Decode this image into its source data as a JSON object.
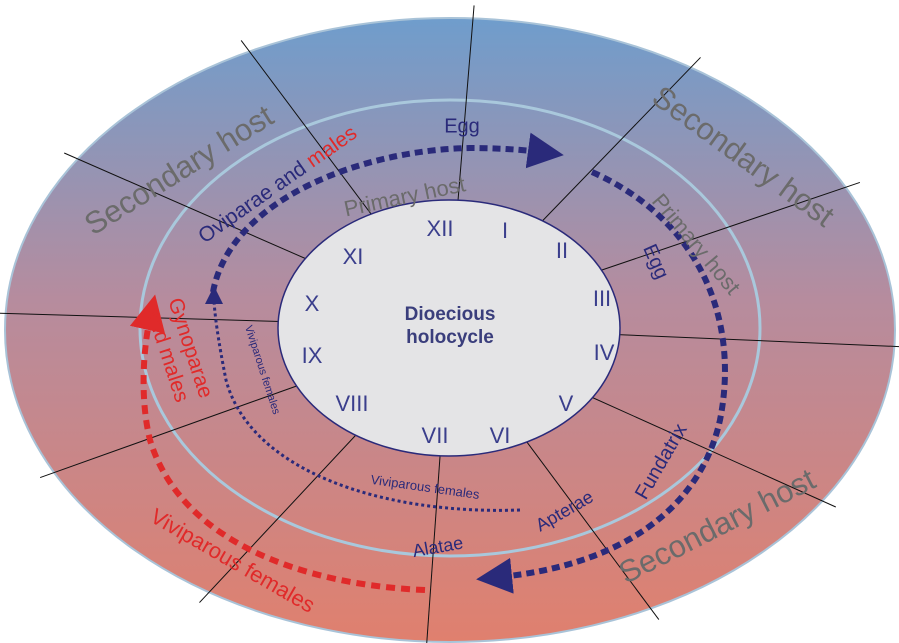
{
  "center": {
    "lines": [
      "Dioecious",
      "holocycle"
    ]
  },
  "months": [
    "XII",
    "I",
    "II",
    "III",
    "IV",
    "V",
    "VI",
    "VII",
    "VIII",
    "IX",
    "X",
    "XI"
  ],
  "labels": [
    {
      "text": "Secondary host"
    },
    {
      "text": "Secondary host"
    },
    {
      "text": "Secondary host"
    },
    {
      "text": "Primary host"
    },
    {
      "text": "Primary host"
    },
    {
      "text": "Egg"
    },
    {
      "text": "Egg"
    },
    {
      "text": "Viviparous females"
    },
    {
      "text": "Viviparous females"
    },
    {
      "text": "Viviparous females"
    },
    {
      "text": "Fundatrix"
    },
    {
      "text": "Apterae"
    },
    {
      "text": "Alatae"
    }
  ],
  "oviparae": {
    "part1": "Oviparae and ",
    "part2": "males"
  },
  "gynoparae": {
    "lines": [
      "Gynoparae",
      "and males"
    ]
  }
}
